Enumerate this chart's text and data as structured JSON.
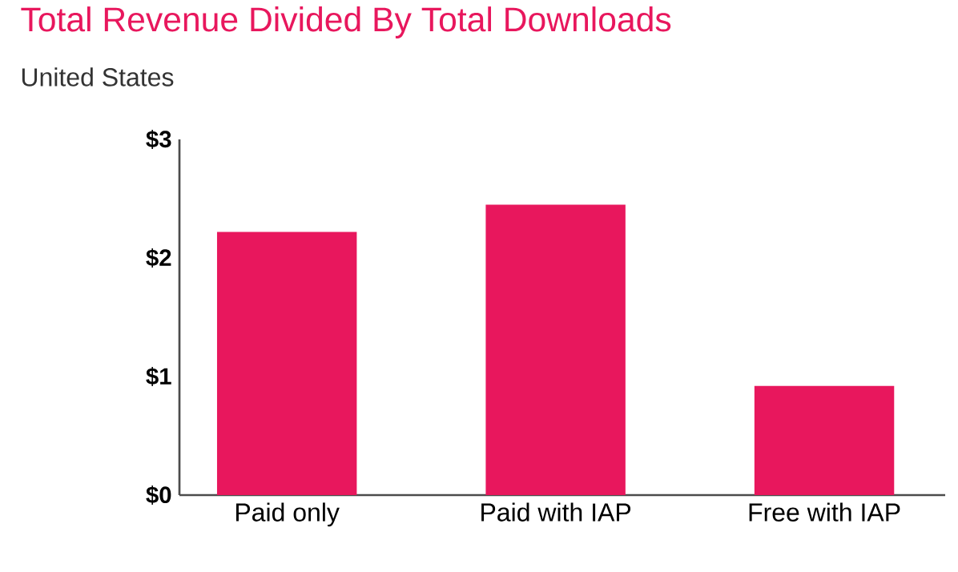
{
  "chart_data": {
    "type": "bar",
    "title": "Total Revenue Divided By Total Downloads",
    "subtitle": "United States",
    "categories": [
      "Paid only",
      "Paid with IAP",
      "Free with IAP"
    ],
    "values": [
      2.22,
      2.45,
      0.92
    ],
    "color": "#e8175d",
    "ylim": [
      0,
      3
    ],
    "yticks": [
      {
        "value": 0,
        "label": "$0"
      },
      {
        "value": 1,
        "label": "$1"
      },
      {
        "value": 2,
        "label": "$2"
      },
      {
        "value": 3,
        "label": "$3"
      }
    ]
  }
}
